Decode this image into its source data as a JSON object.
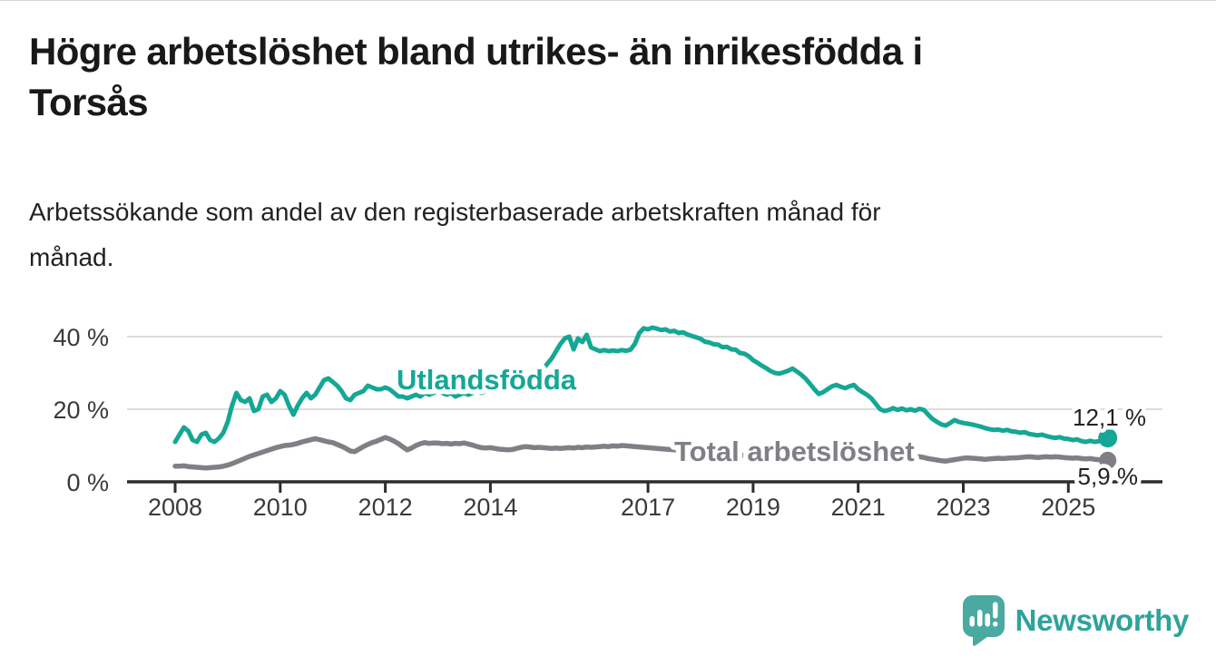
{
  "title_lines": [
    "Högre arbetslöshet bland utrikes- än inrikesfödda i",
    "Torsås"
  ],
  "subtitle_lines": [
    "Arbetssökande som andel av den registerbaserade arbetskraften månad för",
    "månad."
  ],
  "branding": {
    "logo_text": "Newsworthy",
    "logo_icon": "bar-chart-speech-bubble-icon",
    "bubble_color": "#4aa9a1",
    "text_color": "#2ea39a"
  },
  "colors": {
    "foreign_born_line": "#15a795",
    "total_line": "#7f7f86",
    "axis": "#2d2d2d",
    "grid": "#dcdcdc",
    "value_label": "#222222"
  },
  "chart_data": {
    "type": "line",
    "title": "Högre arbetslöshet bland utrikes- än inrikesfödda i Torsås",
    "xlabel": "",
    "ylabel": "Arbetssökande som andel av den registerbaserade arbetskraften",
    "frequency": "monthly",
    "x_start_year": 2008,
    "x_start_month": 1,
    "x_end_year": 2025,
    "x_end_month": 10,
    "x_ticks": [
      "2008",
      "2010",
      "2012",
      "2014",
      "2017",
      "2019",
      "2021",
      "2023",
      "2025"
    ],
    "y_ticks": [
      {
        "value": 0,
        "label": "0 %"
      },
      {
        "value": 20,
        "label": "20 %"
      },
      {
        "value": 40,
        "label": "40 %"
      }
    ],
    "ylim": [
      0,
      45
    ],
    "grid": "horizontal-only",
    "legend_position": "inline-labels-on-lines",
    "series": [
      {
        "name": "Utlandsfödda",
        "color": "#15a795",
        "end_label": "12,1 %",
        "end_value": 12.1,
        "values": [
          11.0,
          13.0,
          15.0,
          14.0,
          11.5,
          11.0,
          13.0,
          13.5,
          11.5,
          11.0,
          12.0,
          13.5,
          16.5,
          21.0,
          24.5,
          22.5,
          22.0,
          23.0,
          19.5,
          20.0,
          23.5,
          24.0,
          22.0,
          23.0,
          25.0,
          24.0,
          21.0,
          18.5,
          21.0,
          23.0,
          24.5,
          23.0,
          24.0,
          26.0,
          28.0,
          28.5,
          27.5,
          26.5,
          25.0,
          23.0,
          22.5,
          24.0,
          24.5,
          25.0,
          26.5,
          26.0,
          25.5,
          25.5,
          26.0,
          25.5,
          24.5,
          23.5,
          23.5,
          23.0,
          23.5,
          24.0,
          23.5,
          24.5,
          24.0,
          24.5,
          25.0,
          24.5,
          24.0,
          24.5,
          23.5,
          24.0,
          24.5,
          24.0,
          24.5,
          25.0,
          24.5,
          25.0,
          25.0,
          25.5,
          26.0,
          25.5,
          26.5,
          26.0,
          27.0,
          27.5,
          27.0,
          28.0,
          29.0,
          30.0,
          31.0,
          32.5,
          34.0,
          36.0,
          38.0,
          39.5,
          40.0,
          36.5,
          39.5,
          38.5,
          40.5,
          37.0,
          36.5,
          36.0,
          36.3,
          36.0,
          36.2,
          36.0,
          36.3,
          36.1,
          36.4,
          38.0,
          41.0,
          42.3,
          42.0,
          42.5,
          42.2,
          41.8,
          42.0,
          41.4,
          41.6,
          41.0,
          41.2,
          40.6,
          40.2,
          39.8,
          39.4,
          38.6,
          38.4,
          37.9,
          37.8,
          37.1,
          37.2,
          36.5,
          36.4,
          35.5,
          35.3,
          34.6,
          33.5,
          32.8,
          32.0,
          31.3,
          30.5,
          30.0,
          29.8,
          30.2,
          30.6,
          31.2,
          30.4,
          29.5,
          28.4,
          27.0,
          25.5,
          24.2,
          24.7,
          25.5,
          26.3,
          26.7,
          26.2,
          25.8,
          26.3,
          26.7,
          25.5,
          24.7,
          24.0,
          23.0,
          21.5,
          20.0,
          19.5,
          19.8,
          20.3,
          19.8,
          20.2,
          19.7,
          20.0,
          19.6,
          20.1,
          19.8,
          18.5,
          17.3,
          16.5,
          15.8,
          15.5,
          16.2,
          17.0,
          16.5,
          16.2,
          16.0,
          15.8,
          15.5,
          15.2,
          14.8,
          14.5,
          14.3,
          14.4,
          14.1,
          14.3,
          13.9,
          13.8,
          13.5,
          13.7,
          13.2,
          13.0,
          12.8,
          13.0,
          12.6,
          12.3,
          12.1,
          12.3,
          11.9,
          11.8,
          11.5,
          11.7,
          11.2,
          11.0,
          11.3,
          11.0,
          11.2,
          11.6,
          12.1
        ]
      },
      {
        "name": "Total arbetslöshet",
        "color": "#7f7f86",
        "end_label": "5,9 %",
        "end_value": 5.9,
        "values": [
          4.3,
          4.3,
          4.4,
          4.2,
          4.1,
          4.0,
          3.9,
          3.8,
          3.9,
          4.0,
          4.1,
          4.3,
          4.6,
          5.0,
          5.5,
          6.0,
          6.5,
          7.0,
          7.4,
          7.8,
          8.2,
          8.6,
          9.0,
          9.4,
          9.7,
          10.0,
          10.1,
          10.3,
          10.6,
          11.0,
          11.3,
          11.6,
          11.9,
          11.6,
          11.3,
          11.0,
          10.8,
          10.3,
          9.8,
          9.2,
          8.5,
          8.3,
          9.0,
          9.7,
          10.3,
          10.8,
          11.2,
          11.7,
          12.2,
          11.8,
          11.2,
          10.5,
          9.6,
          8.8,
          9.3,
          10.0,
          10.5,
          10.8,
          10.6,
          10.7,
          10.7,
          10.5,
          10.6,
          10.4,
          10.6,
          10.5,
          10.7,
          10.4,
          10.1,
          9.7,
          9.4,
          9.3,
          9.4,
          9.2,
          9.0,
          8.9,
          8.8,
          8.9,
          9.2,
          9.5,
          9.7,
          9.6,
          9.4,
          9.5,
          9.4,
          9.3,
          9.2,
          9.3,
          9.2,
          9.3,
          9.4,
          9.3,
          9.5,
          9.4,
          9.6,
          9.5,
          9.6,
          9.7,
          9.8,
          9.7,
          9.9,
          9.8,
          10.0,
          9.9,
          9.8,
          9.7,
          9.6,
          9.5,
          9.4,
          9.3,
          9.2,
          9.1,
          9.0,
          8.9,
          8.8,
          8.7,
          8.6,
          8.5,
          8.4,
          8.3,
          8.2,
          8.1,
          8.0,
          7.9,
          7.8,
          7.7,
          7.6,
          7.5,
          7.4,
          7.3,
          7.2,
          7.1,
          7.0,
          7.0,
          6.9,
          6.9,
          6.8,
          6.8,
          6.9,
          6.9,
          7.0,
          7.0,
          7.1,
          7.1,
          7.3,
          7.5,
          7.9,
          8.4,
          8.7,
          8.9,
          9.0,
          8.9,
          8.8,
          8.7,
          8.6,
          8.5,
          8.4,
          8.3,
          8.1,
          7.9,
          7.7,
          7.5,
          7.4,
          7.2,
          7.1,
          7.0,
          6.9,
          6.9,
          6.9,
          6.8,
          6.9,
          6.7,
          6.4,
          6.2,
          6.0,
          5.8,
          5.7,
          5.9,
          6.1,
          6.3,
          6.5,
          6.6,
          6.5,
          6.4,
          6.3,
          6.2,
          6.3,
          6.4,
          6.5,
          6.4,
          6.5,
          6.6,
          6.6,
          6.7,
          6.8,
          6.9,
          6.8,
          6.7,
          6.8,
          6.9,
          6.8,
          6.9,
          6.8,
          6.7,
          6.6,
          6.5,
          6.6,
          6.4,
          6.3,
          6.4,
          6.2,
          6.1,
          6.0,
          5.9
        ]
      }
    ]
  }
}
